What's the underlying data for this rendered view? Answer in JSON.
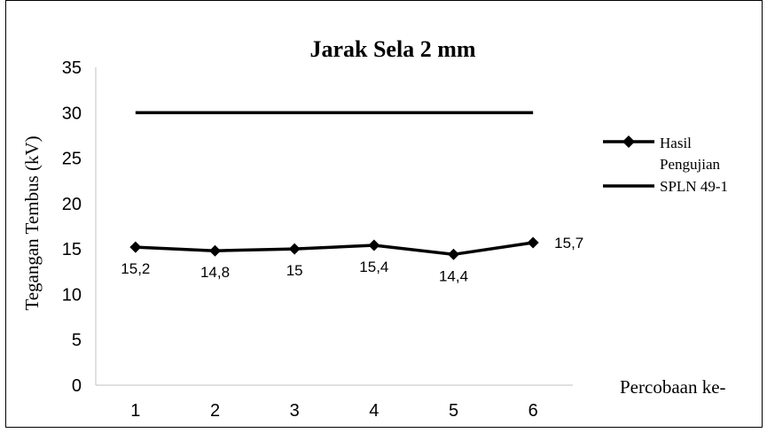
{
  "chart_data": {
    "type": "line",
    "title": "Jarak Sela 2 mm",
    "xlabel": "Percobaan ke-",
    "ylabel": "Tegangan Tembus (kV)",
    "categories": [
      "1",
      "2",
      "3",
      "4",
      "5",
      "6"
    ],
    "ylim": [
      0,
      35
    ],
    "yticks": [
      "0",
      "5",
      "10",
      "15",
      "20",
      "25",
      "30",
      "35"
    ],
    "grid": false,
    "legend_position": "right",
    "series": [
      {
        "name": "Hasil Pengujian",
        "values": [
          15.2,
          14.8,
          15,
          15.4,
          14.4,
          15.7
        ],
        "data_labels": [
          "15,2",
          "14,8",
          "15",
          "15,4",
          "14,4",
          "15,7"
        ],
        "marker": "diamond",
        "color": "#000000"
      },
      {
        "name": "SPLN 49-1",
        "values": [
          30,
          30,
          30,
          30,
          30,
          30
        ],
        "marker": "none",
        "color": "#000000"
      }
    ]
  }
}
